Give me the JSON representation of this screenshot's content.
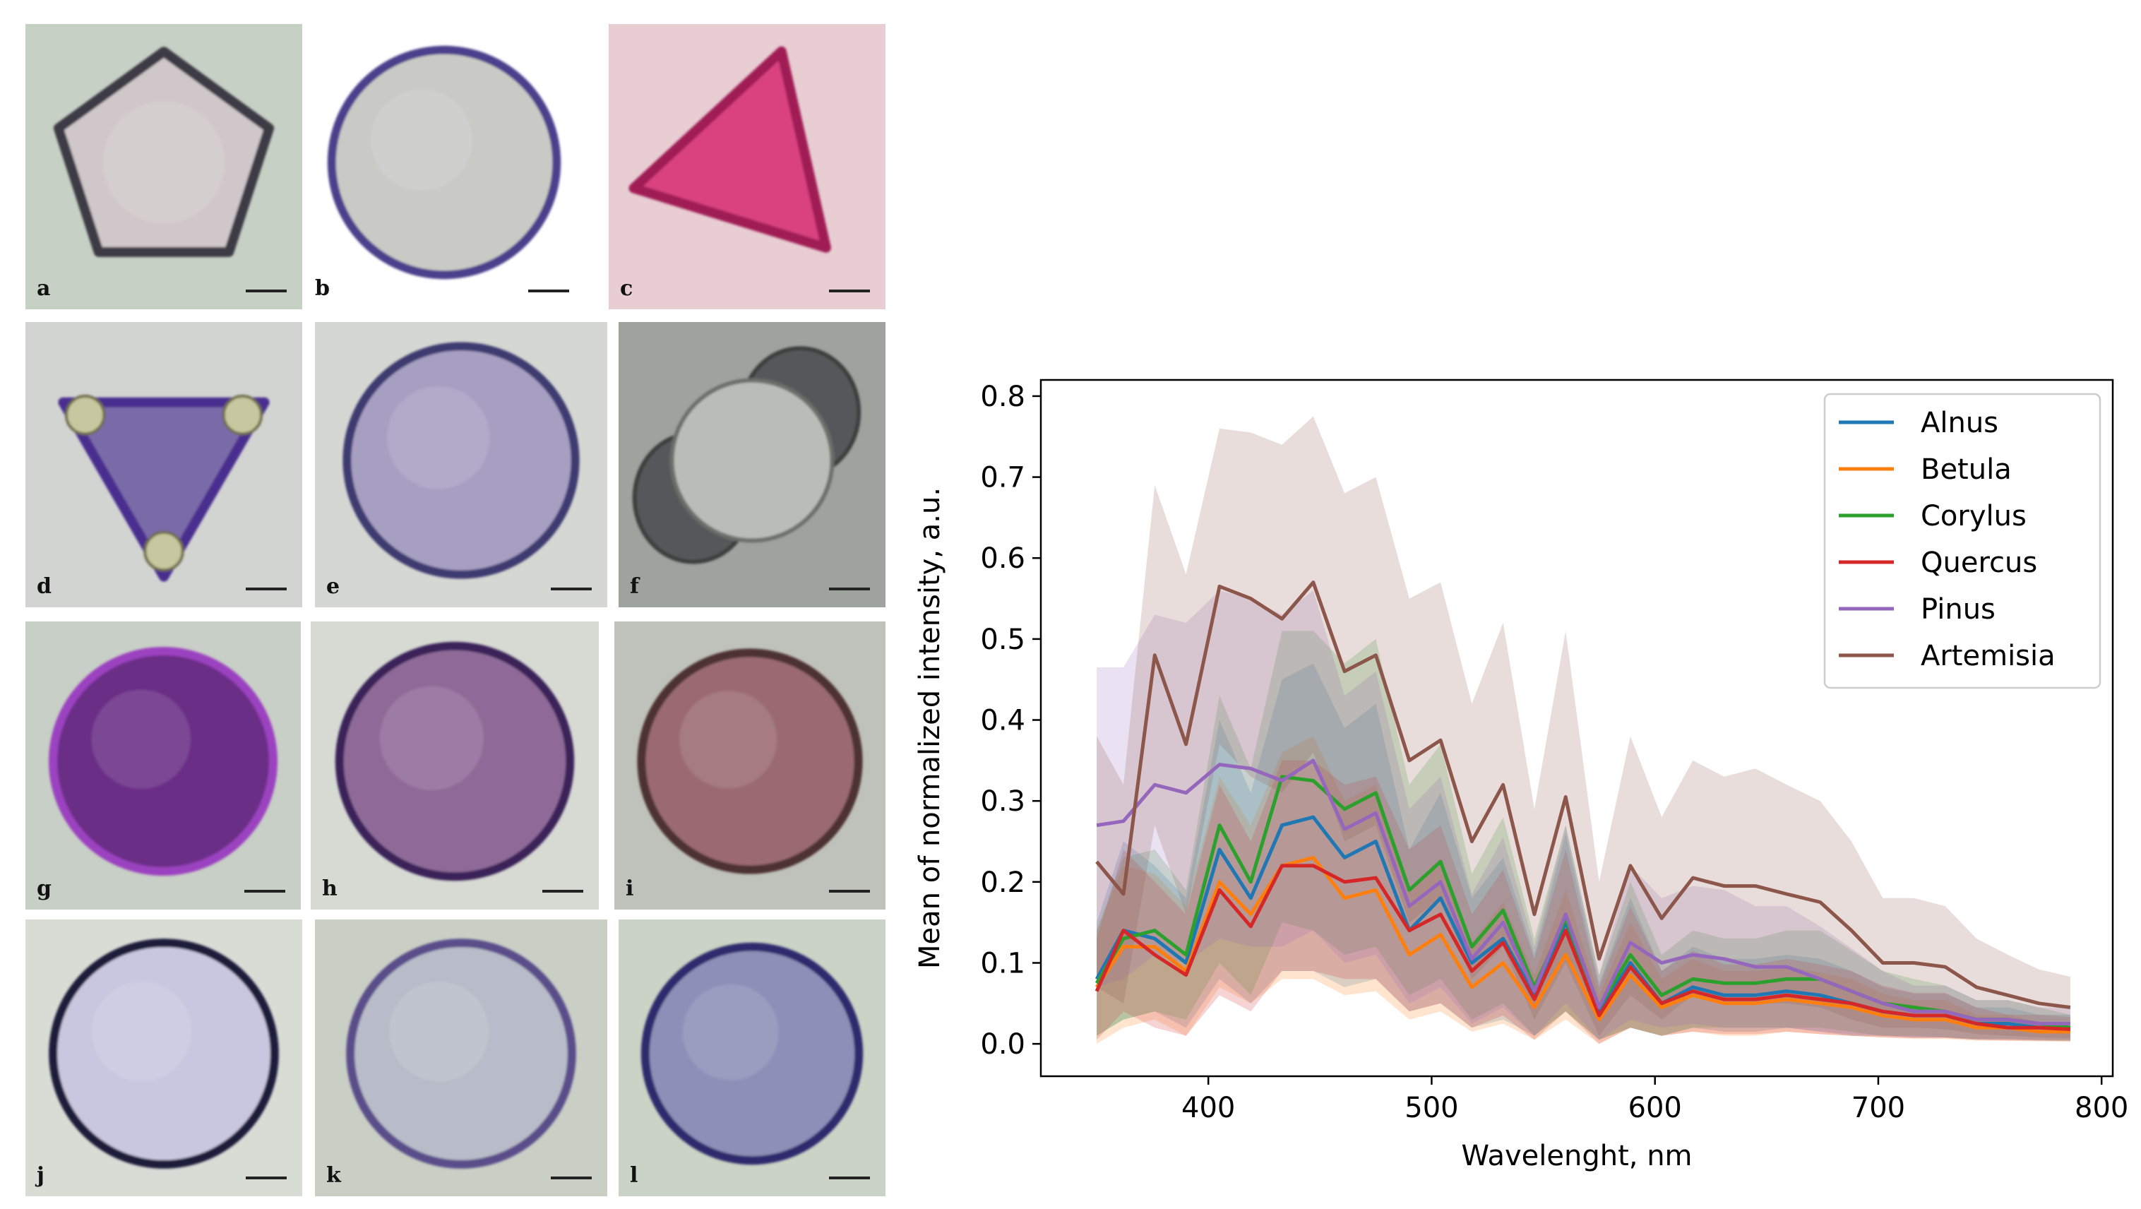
{
  "micrographs": {
    "panels": [
      {
        "label": "a",
        "fill": "#cfc7c9",
        "rim": "#3d3a45",
        "bg": "#c6d0c4",
        "shape": "pentagon"
      },
      {
        "label": "b",
        "fill": "#c9cac6",
        "rim": "#4b3f8c",
        "bg": "#ffffff",
        "shape": "circle"
      },
      {
        "label": "c",
        "fill": "#d9427f",
        "rim": "#a01c55",
        "bg": "#e8cdd2",
        "shape": "triangle"
      },
      {
        "label": "d",
        "fill": "#7a6aa8",
        "rim": "#4a2f8f",
        "bg": "#d2d4d2",
        "shape": "triangle"
      },
      {
        "label": "e",
        "fill": "#a79fc2",
        "rim": "#3e3a70",
        "bg": "#d4d7d2",
        "shape": "circle"
      },
      {
        "label": "f",
        "fill": "#b9bdb8",
        "rim": "#3b403c",
        "bg": "#9ea39e",
        "shape": "pinus"
      },
      {
        "label": "g",
        "fill": "#6a2e86",
        "rim": "#9b43c0",
        "bg": "#c8cfc6",
        "shape": "circle"
      },
      {
        "label": "h",
        "fill": "#8f6a98",
        "rim": "#3a2458",
        "bg": "#d6dad3",
        "shape": "circle"
      },
      {
        "label": "i",
        "fill": "#9a6a6f",
        "rim": "#4d3230",
        "bg": "#bfc2bb",
        "shape": "circle"
      },
      {
        "label": "j",
        "fill": "#c9c7df",
        "rim": "#1f1f3a",
        "bg": "#d7dcd4",
        "shape": "circle"
      },
      {
        "label": "k",
        "fill": "#b8bcc8",
        "rim": "#5a4d8a",
        "bg": "#c9cfc5",
        "shape": "circle"
      },
      {
        "label": "l",
        "fill": "#8d8fb8",
        "rim": "#2d2b6d",
        "bg": "#cad3c5",
        "shape": "circle"
      }
    ]
  },
  "chart_data": {
    "type": "line",
    "title": "",
    "xlabel": "Wavelenght, nm",
    "ylabel": "Mean of normalized intensity, a.u.",
    "xlim": [
      325,
      805
    ],
    "ylim": [
      -0.04,
      0.82
    ],
    "xticks": [
      400,
      500,
      600,
      700,
      800
    ],
    "yticks": [
      0.0,
      0.1,
      0.2,
      0.3,
      0.4,
      0.5,
      0.6,
      0.7,
      0.8
    ],
    "legend_position": "top-right",
    "x": [
      350,
      362,
      376,
      390,
      405,
      419,
      433,
      447,
      461,
      475,
      490,
      504,
      518,
      532,
      546,
      560,
      575,
      589,
      603,
      617,
      631,
      645,
      659,
      674,
      688,
      702,
      716,
      730,
      744,
      758,
      772,
      786
    ],
    "series": [
      {
        "name": "Alnus",
        "color": "#1f77b4",
        "values": [
          0.08,
          0.14,
          0.13,
          0.1,
          0.24,
          0.18,
          0.27,
          0.28,
          0.23,
          0.25,
          0.14,
          0.18,
          0.1,
          0.13,
          0.06,
          0.15,
          0.04,
          0.1,
          0.05,
          0.07,
          0.06,
          0.06,
          0.065,
          0.06,
          0.05,
          0.04,
          0.035,
          0.035,
          0.025,
          0.025,
          0.02,
          0.02
        ],
        "lower": [
          0.01,
          0.03,
          0.04,
          0.02,
          0.08,
          0.05,
          0.09,
          0.09,
          0.07,
          0.08,
          0.04,
          0.05,
          0.02,
          0.03,
          0.01,
          0.04,
          0.005,
          0.02,
          0.01,
          0.02,
          0.015,
          0.015,
          0.02,
          0.015,
          0.01,
          0.01,
          0.008,
          0.008,
          0.005,
          0.005,
          0.004,
          0.004
        ],
        "upper": [
          0.15,
          0.25,
          0.22,
          0.18,
          0.4,
          0.31,
          0.45,
          0.47,
          0.39,
          0.42,
          0.24,
          0.31,
          0.18,
          0.23,
          0.11,
          0.26,
          0.075,
          0.18,
          0.09,
          0.12,
          0.105,
          0.105,
          0.11,
          0.105,
          0.09,
          0.07,
          0.062,
          0.062,
          0.045,
          0.045,
          0.036,
          0.036
        ]
      },
      {
        "name": "Betula",
        "color": "#ff7f0e",
        "values": [
          0.07,
          0.12,
          0.12,
          0.09,
          0.2,
          0.16,
          0.22,
          0.23,
          0.18,
          0.19,
          0.11,
          0.135,
          0.07,
          0.1,
          0.045,
          0.11,
          0.03,
          0.085,
          0.045,
          0.06,
          0.05,
          0.05,
          0.055,
          0.05,
          0.045,
          0.035,
          0.03,
          0.03,
          0.02,
          0.02,
          0.015,
          0.015
        ],
        "lower": [
          0.0,
          0.02,
          0.03,
          0.01,
          0.07,
          0.05,
          0.08,
          0.08,
          0.06,
          0.065,
          0.03,
          0.04,
          0.015,
          0.025,
          0.005,
          0.03,
          0.0,
          0.02,
          0.01,
          0.015,
          0.01,
          0.01,
          0.015,
          0.012,
          0.01,
          0.008,
          0.006,
          0.006,
          0.004,
          0.004,
          0.003,
          0.003
        ],
        "upper": [
          0.14,
          0.22,
          0.21,
          0.17,
          0.33,
          0.27,
          0.36,
          0.38,
          0.3,
          0.32,
          0.19,
          0.23,
          0.125,
          0.175,
          0.085,
          0.19,
          0.06,
          0.15,
          0.08,
          0.105,
          0.09,
          0.09,
          0.095,
          0.088,
          0.08,
          0.062,
          0.054,
          0.054,
          0.036,
          0.036,
          0.027,
          0.027
        ]
      },
      {
        "name": "Corylus",
        "color": "#2ca02c",
        "values": [
          0.075,
          0.13,
          0.14,
          0.11,
          0.27,
          0.2,
          0.33,
          0.325,
          0.29,
          0.31,
          0.19,
          0.225,
          0.12,
          0.165,
          0.07,
          0.155,
          0.045,
          0.11,
          0.06,
          0.08,
          0.075,
          0.075,
          0.08,
          0.08,
          0.065,
          0.05,
          0.045,
          0.04,
          0.03,
          0.03,
          0.025,
          0.02
        ],
        "lower": [
          0.01,
          0.03,
          0.04,
          0.03,
          0.1,
          0.06,
          0.15,
          0.14,
          0.11,
          0.12,
          0.06,
          0.08,
          0.03,
          0.05,
          0.01,
          0.04,
          0.005,
          0.02,
          0.01,
          0.02,
          0.02,
          0.02,
          0.02,
          0.02,
          0.015,
          0.01,
          0.01,
          0.008,
          0.006,
          0.006,
          0.005,
          0.004
        ],
        "upper": [
          0.14,
          0.23,
          0.24,
          0.19,
          0.43,
          0.34,
          0.51,
          0.51,
          0.47,
          0.5,
          0.32,
          0.37,
          0.21,
          0.28,
          0.13,
          0.27,
          0.085,
          0.2,
          0.11,
          0.14,
          0.13,
          0.13,
          0.14,
          0.14,
          0.115,
          0.09,
          0.08,
          0.072,
          0.054,
          0.054,
          0.045,
          0.036
        ]
      },
      {
        "name": "Quercus",
        "color": "#d62728",
        "values": [
          0.065,
          0.14,
          0.11,
          0.085,
          0.19,
          0.145,
          0.22,
          0.22,
          0.2,
          0.205,
          0.14,
          0.16,
          0.09,
          0.125,
          0.055,
          0.14,
          0.035,
          0.095,
          0.05,
          0.065,
          0.055,
          0.055,
          0.06,
          0.055,
          0.05,
          0.04,
          0.035,
          0.035,
          0.025,
          0.02,
          0.02,
          0.018
        ],
        "lower": [
          0.005,
          0.04,
          0.02,
          0.01,
          0.06,
          0.04,
          0.09,
          0.09,
          0.08,
          0.08,
          0.04,
          0.05,
          0.02,
          0.035,
          0.005,
          0.04,
          0.0,
          0.02,
          0.01,
          0.015,
          0.012,
          0.012,
          0.015,
          0.012,
          0.01,
          0.008,
          0.007,
          0.007,
          0.005,
          0.004,
          0.004,
          0.003
        ],
        "upper": [
          0.13,
          0.24,
          0.2,
          0.16,
          0.32,
          0.25,
          0.35,
          0.35,
          0.32,
          0.33,
          0.24,
          0.27,
          0.16,
          0.215,
          0.105,
          0.24,
          0.07,
          0.17,
          0.09,
          0.115,
          0.098,
          0.098,
          0.105,
          0.098,
          0.09,
          0.072,
          0.063,
          0.063,
          0.045,
          0.036,
          0.036,
          0.033
        ]
      },
      {
        "name": "Pinus",
        "color": "#9467bd",
        "values": [
          0.27,
          0.275,
          0.32,
          0.31,
          0.345,
          0.34,
          0.325,
          0.35,
          0.265,
          0.285,
          0.17,
          0.2,
          0.105,
          0.15,
          0.065,
          0.16,
          0.045,
          0.125,
          0.1,
          0.11,
          0.105,
          0.095,
          0.095,
          0.08,
          0.065,
          0.05,
          0.04,
          0.04,
          0.03,
          0.03,
          0.025,
          0.025
        ],
        "lower": [
          0.07,
          0.08,
          0.11,
          0.1,
          0.13,
          0.12,
          0.12,
          0.14,
          0.1,
          0.11,
          0.05,
          0.07,
          0.025,
          0.045,
          0.01,
          0.05,
          0.005,
          0.03,
          0.02,
          0.025,
          0.02,
          0.02,
          0.02,
          0.015,
          0.012,
          0.01,
          0.008,
          0.008,
          0.006,
          0.006,
          0.005,
          0.005
        ],
        "upper": [
          0.465,
          0.465,
          0.53,
          0.52,
          0.56,
          0.55,
          0.53,
          0.56,
          0.43,
          0.46,
          0.29,
          0.33,
          0.185,
          0.255,
          0.12,
          0.27,
          0.085,
          0.22,
          0.18,
          0.195,
          0.19,
          0.17,
          0.17,
          0.145,
          0.118,
          0.09,
          0.072,
          0.072,
          0.054,
          0.054,
          0.045,
          0.045
        ]
      },
      {
        "name": "Artemisia",
        "color": "#8c564b",
        "values": [
          0.225,
          0.185,
          0.48,
          0.37,
          0.565,
          0.55,
          0.525,
          0.57,
          0.46,
          0.48,
          0.35,
          0.375,
          0.25,
          0.32,
          0.16,
          0.305,
          0.105,
          0.22,
          0.155,
          0.205,
          0.195,
          0.195,
          0.185,
          0.175,
          0.14,
          0.1,
          0.1,
          0.095,
          0.07,
          0.06,
          0.05,
          0.045
        ],
        "lower": [
          0.07,
          0.05,
          0.27,
          0.16,
          0.37,
          0.33,
          0.31,
          0.36,
          0.25,
          0.27,
          0.15,
          0.18,
          0.08,
          0.12,
          0.03,
          0.1,
          0.01,
          0.06,
          0.03,
          0.06,
          0.05,
          0.05,
          0.05,
          0.045,
          0.03,
          0.02,
          0.02,
          0.018,
          0.012,
          0.01,
          0.008,
          0.007
        ],
        "upper": [
          0.38,
          0.32,
          0.69,
          0.58,
          0.76,
          0.755,
          0.74,
          0.775,
          0.68,
          0.7,
          0.55,
          0.57,
          0.42,
          0.52,
          0.29,
          0.51,
          0.2,
          0.38,
          0.28,
          0.35,
          0.33,
          0.34,
          0.32,
          0.3,
          0.25,
          0.18,
          0.18,
          0.17,
          0.13,
          0.11,
          0.092,
          0.083
        ]
      }
    ]
  }
}
